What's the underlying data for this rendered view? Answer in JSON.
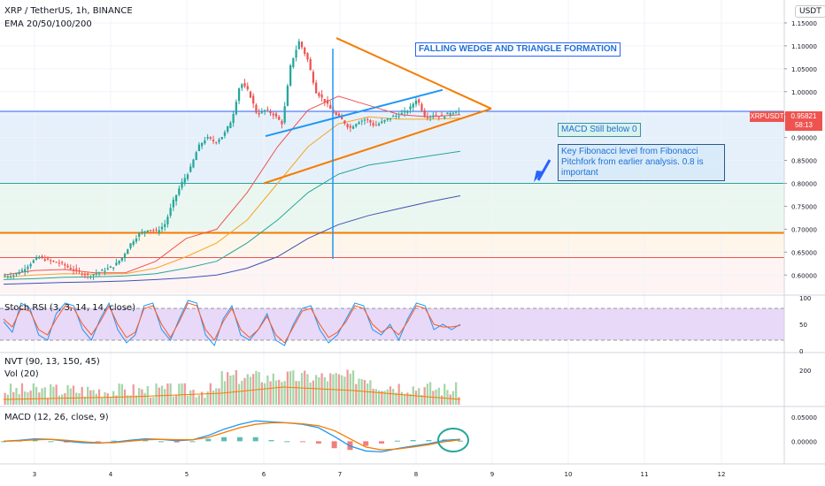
{
  "header": {
    "symbol_line": "XRP / TetherUS, 1h, BINANCE",
    "ema_label": "EMA 20/50/100/200",
    "currency": "USDT"
  },
  "price_label": {
    "ticker": "XRPUSDT",
    "value": "0.95821",
    "timer": "58:13"
  },
  "annotations": {
    "pattern": "FALLING WEDGE AND TRIANGLE FORMATION",
    "macd_note": "MACD Still below 0",
    "fib_note_lines": [
      "Key Fibonacci level from Fibonacci",
      "Pitchfork from earlier analysis. 0.8 is",
      "important"
    ]
  },
  "panes": {
    "stoch_label": "Stoch RSI (3, 3, 14, 14, close)",
    "nvt_label": "NVT (90, 13, 150, 45)",
    "vol_label": "Vol (20)",
    "macd_label": "MACD (12, 26, close, 9)"
  },
  "colors": {
    "up": "#26a69a",
    "down": "#ef5350",
    "accent": "#2962ff",
    "orange": "#f57c00",
    "annotation": "#1e6fd9"
  },
  "chart_data": {
    "type": "candlestick",
    "x_ticks": [
      "3",
      "4",
      "5",
      "6",
      "7",
      "8",
      "9",
      "10",
      "11",
      "12"
    ],
    "price_axis": {
      "ticks": [
        "1.15000",
        "1.10000",
        "1.05000",
        "1.00000",
        "0.95000",
        "0.90000",
        "0.85000",
        "0.80000",
        "0.75000",
        "0.70000",
        "0.65000",
        "0.60000"
      ],
      "ylim": [
        0.56,
        1.2
      ]
    },
    "price_path": [
      0.598,
      0.6,
      0.61,
      0.625,
      0.64,
      0.632,
      0.628,
      0.622,
      0.612,
      0.605,
      0.598,
      0.605,
      0.612,
      0.62,
      0.64,
      0.67,
      0.69,
      0.7,
      0.695,
      0.71,
      0.76,
      0.8,
      0.83,
      0.88,
      0.9,
      0.89,
      0.905,
      0.94,
      1.02,
      1.0,
      0.95,
      0.96,
      0.95,
      0.93,
      1.06,
      1.11,
      1.07,
      1.0,
      0.98,
      0.955,
      0.94,
      0.92,
      0.935,
      0.94,
      0.925,
      0.935,
      0.945,
      0.95,
      0.96,
      0.985,
      0.945,
      0.95,
      0.945,
      0.955,
      0.958
    ],
    "last_price": 0.95821,
    "ema": [
      {
        "name": "EMA 20",
        "color": "#ef5350",
        "values": [
          0.6,
          0.61,
          0.612,
          0.605,
          0.605,
          0.63,
          0.68,
          0.7,
          0.78,
          0.88,
          0.96,
          0.99,
          0.97,
          0.95,
          0.945,
          0.95
        ]
      },
      {
        "name": "EMA 50",
        "color": "#f5a623",
        "values": [
          0.595,
          0.6,
          0.603,
          0.602,
          0.603,
          0.615,
          0.64,
          0.67,
          0.72,
          0.8,
          0.88,
          0.93,
          0.945,
          0.94,
          0.94,
          0.942
        ]
      },
      {
        "name": "EMA 100",
        "color": "#26a69a",
        "values": [
          0.59,
          0.592,
          0.595,
          0.596,
          0.598,
          0.603,
          0.615,
          0.63,
          0.67,
          0.72,
          0.78,
          0.82,
          0.84,
          0.85,
          0.86,
          0.87
        ]
      },
      {
        "name": "EMA 200",
        "color": "#3f51b5",
        "values": [
          0.58,
          0.582,
          0.584,
          0.585,
          0.587,
          0.59,
          0.594,
          0.6,
          0.615,
          0.64,
          0.68,
          0.71,
          0.73,
          0.745,
          0.76,
          0.773
        ]
      }
    ],
    "horizontal_levels": [
      {
        "price": 0.957,
        "color": "#2962ff"
      },
      {
        "price": 0.8,
        "color": "#26a69a"
      },
      {
        "price": 0.692,
        "color": "#f57c00"
      },
      {
        "price": 0.638,
        "color": "#ef5350"
      }
    ],
    "stoch_rsi": {
      "ticks": [
        "100",
        "50",
        "0"
      ],
      "bands": [
        80,
        20
      ],
      "k": [
        55,
        35,
        90,
        80,
        30,
        20,
        70,
        90,
        85,
        40,
        20,
        60,
        90,
        40,
        15,
        30,
        85,
        90,
        40,
        20,
        60,
        95,
        90,
        30,
        10,
        60,
        85,
        30,
        20,
        40,
        70,
        20,
        10,
        50,
        80,
        85,
        40,
        15,
        30,
        60,
        90,
        85,
        40,
        30,
        50,
        20,
        60,
        90,
        85,
        40,
        50,
        40,
        50
      ],
      "d": [
        60,
        45,
        80,
        75,
        40,
        30,
        60,
        85,
        80,
        50,
        30,
        55,
        85,
        50,
        25,
        35,
        80,
        85,
        50,
        25,
        55,
        90,
        85,
        40,
        20,
        55,
        80,
        40,
        25,
        40,
        65,
        30,
        15,
        45,
        75,
        80,
        50,
        25,
        35,
        55,
        85,
        80,
        50,
        35,
        45,
        30,
        55,
        85,
        80,
        50,
        45,
        45,
        48
      ]
    },
    "volume": {
      "ticks": [
        "200"
      ]
    },
    "macd": {
      "ticks": [
        "0.05000",
        "0.00000"
      ],
      "ylim": [
        -0.045,
        0.07
      ],
      "macd_line": [
        0.0,
        0.002,
        0.005,
        0.004,
        0.0,
        -0.003,
        -0.004,
        -0.002,
        0.002,
        0.005,
        0.004,
        0.001,
        0.003,
        0.012,
        0.025,
        0.035,
        0.042,
        0.04,
        0.038,
        0.035,
        0.028,
        0.01,
        -0.01,
        -0.02,
        -0.022,
        -0.015,
        -0.01,
        -0.005,
        0.002,
        0.004
      ],
      "signal_line": [
        0.0,
        0.001,
        0.003,
        0.004,
        0.002,
        -0.001,
        -0.003,
        -0.003,
        0.0,
        0.003,
        0.004,
        0.003,
        0.003,
        0.008,
        0.018,
        0.028,
        0.035,
        0.038,
        0.038,
        0.036,
        0.032,
        0.022,
        0.005,
        -0.012,
        -0.018,
        -0.016,
        -0.012,
        -0.007,
        -0.001,
        0.003
      ]
    }
  }
}
